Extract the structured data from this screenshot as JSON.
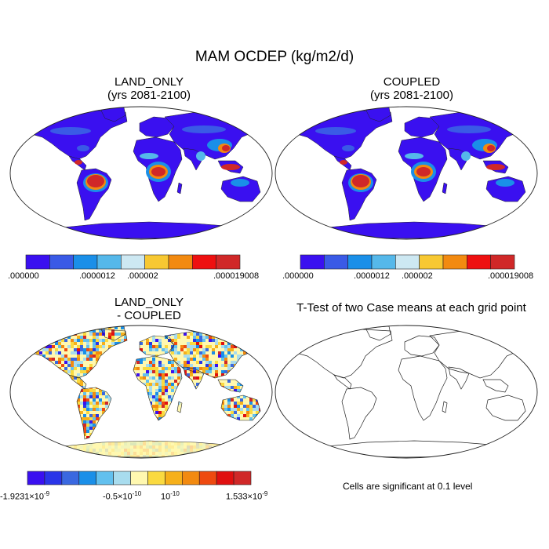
{
  "title": "MAM OCDEP (kg/m2/d)",
  "panels": [
    {
      "id": "land",
      "title_line1": "LAND_ONLY",
      "title_line2": "(yrs 2081-2100)"
    },
    {
      "id": "coupled",
      "title_line1": "COUPLED",
      "title_line2": "(yrs 2081-2100)"
    },
    {
      "id": "diff",
      "title_line1": "LAND_ONLY",
      "title_line2": "- COUPLED"
    },
    {
      "id": "ttest",
      "title_line1": "T-Test of two Case means at each grid point"
    }
  ],
  "colorbars": {
    "top": {
      "colors": [
        "#3a10f0",
        "#3a5ae6",
        "#1a8fe8",
        "#55b8ea",
        "#cde8f2",
        "#f7c832",
        "#f28a10",
        "#ee1010",
        "#d02828"
      ],
      "labels": [
        ".000000",
        ".0000012",
        ".000002",
        ".000019008"
      ]
    },
    "bottom": {
      "colors": [
        "#3a10f0",
        "#2a35e8",
        "#3a68e0",
        "#1a8fe8",
        "#62c0ee",
        "#a8dcee",
        "#fff8b0",
        "#fada40",
        "#f6b01a",
        "#f28a10",
        "#ee4a10",
        "#e01010",
        "#d02828"
      ],
      "labels": [
        "-1.9231×10",
        "-0.5×10",
        "10",
        "1.533×10"
      ],
      "exponents": [
        "-9",
        "-10",
        "-10",
        "-9"
      ]
    }
  },
  "note": "Cells are significant at 0.1 level",
  "chart_data": {
    "type": "heatmap",
    "title": "MAM OCDEP (kg/m2/d)",
    "maps": [
      {
        "name": "LAND_ONLY (yrs 2081-2100)",
        "range": [
          0,
          1.9008e-05
        ],
        "contour_levels": [
          0,
          1.2e-06,
          2e-06,
          1.9008e-05
        ]
      },
      {
        "name": "COUPLED (yrs 2081-2100)",
        "range": [
          0,
          1.9008e-05
        ],
        "contour_levels": [
          0,
          1.2e-06,
          2e-06,
          1.9008e-05
        ]
      },
      {
        "name": "LAND_ONLY - COUPLED",
        "range": [
          -1.9231e-09,
          1.533e-09
        ],
        "ticks": [
          -1.9231e-09,
          -5e-11,
          1e-10,
          1.533e-09
        ]
      },
      {
        "name": "T-Test of two Case means at each grid point",
        "note": "Cells are significant at 0.1 level"
      }
    ]
  }
}
